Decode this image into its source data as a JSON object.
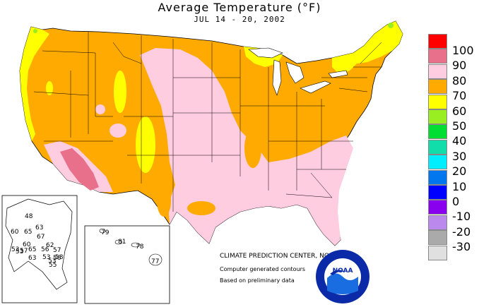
{
  "title": "Average Temperature (°F)",
  "subtitle": "JUL 14 - 20, 2002",
  "legend": [
    {
      "label": "100",
      "color": "#ff0000"
    },
    {
      "label": "90",
      "color": "#e8708a"
    },
    {
      "label": "80",
      "color": "#ffcce0"
    },
    {
      "label": "70",
      "color": "#ffaa00"
    },
    {
      "label": "60",
      "color": "#ffff00"
    },
    {
      "label": "50",
      "color": "#99ee22"
    },
    {
      "label": "40",
      "color": "#00dd33"
    },
    {
      "label": "30",
      "color": "#11ddaa"
    },
    {
      "label": "20",
      "color": "#00eeff"
    },
    {
      "label": "10",
      "color": "#0077ee"
    },
    {
      "label": "0",
      "color": "#0000ff"
    },
    {
      "label": "-10",
      "color": "#8800ee"
    },
    {
      "label": "-20",
      "color": "#bb88ee"
    },
    {
      "label": "-30",
      "color": "#aaaaaa"
    },
    {
      "label": "",
      "color": "#e0e0e0"
    }
  ],
  "credits": {
    "main": "CLIMATE PREDICTION CENTER, NOAA",
    "line1": "Computer generated contours",
    "line2": "Based on preliminary data"
  },
  "logo": {
    "text": "NOAA"
  },
  "alaska_values": [
    "48",
    "63",
    "60",
    "65",
    "67",
    "53",
    "60",
    "62",
    "65",
    "57",
    "57",
    "58",
    "56",
    "53",
    "63",
    "56",
    "53",
    "53",
    "55"
  ],
  "hawaii_values": [
    "79",
    "81",
    "78",
    "77"
  ]
}
